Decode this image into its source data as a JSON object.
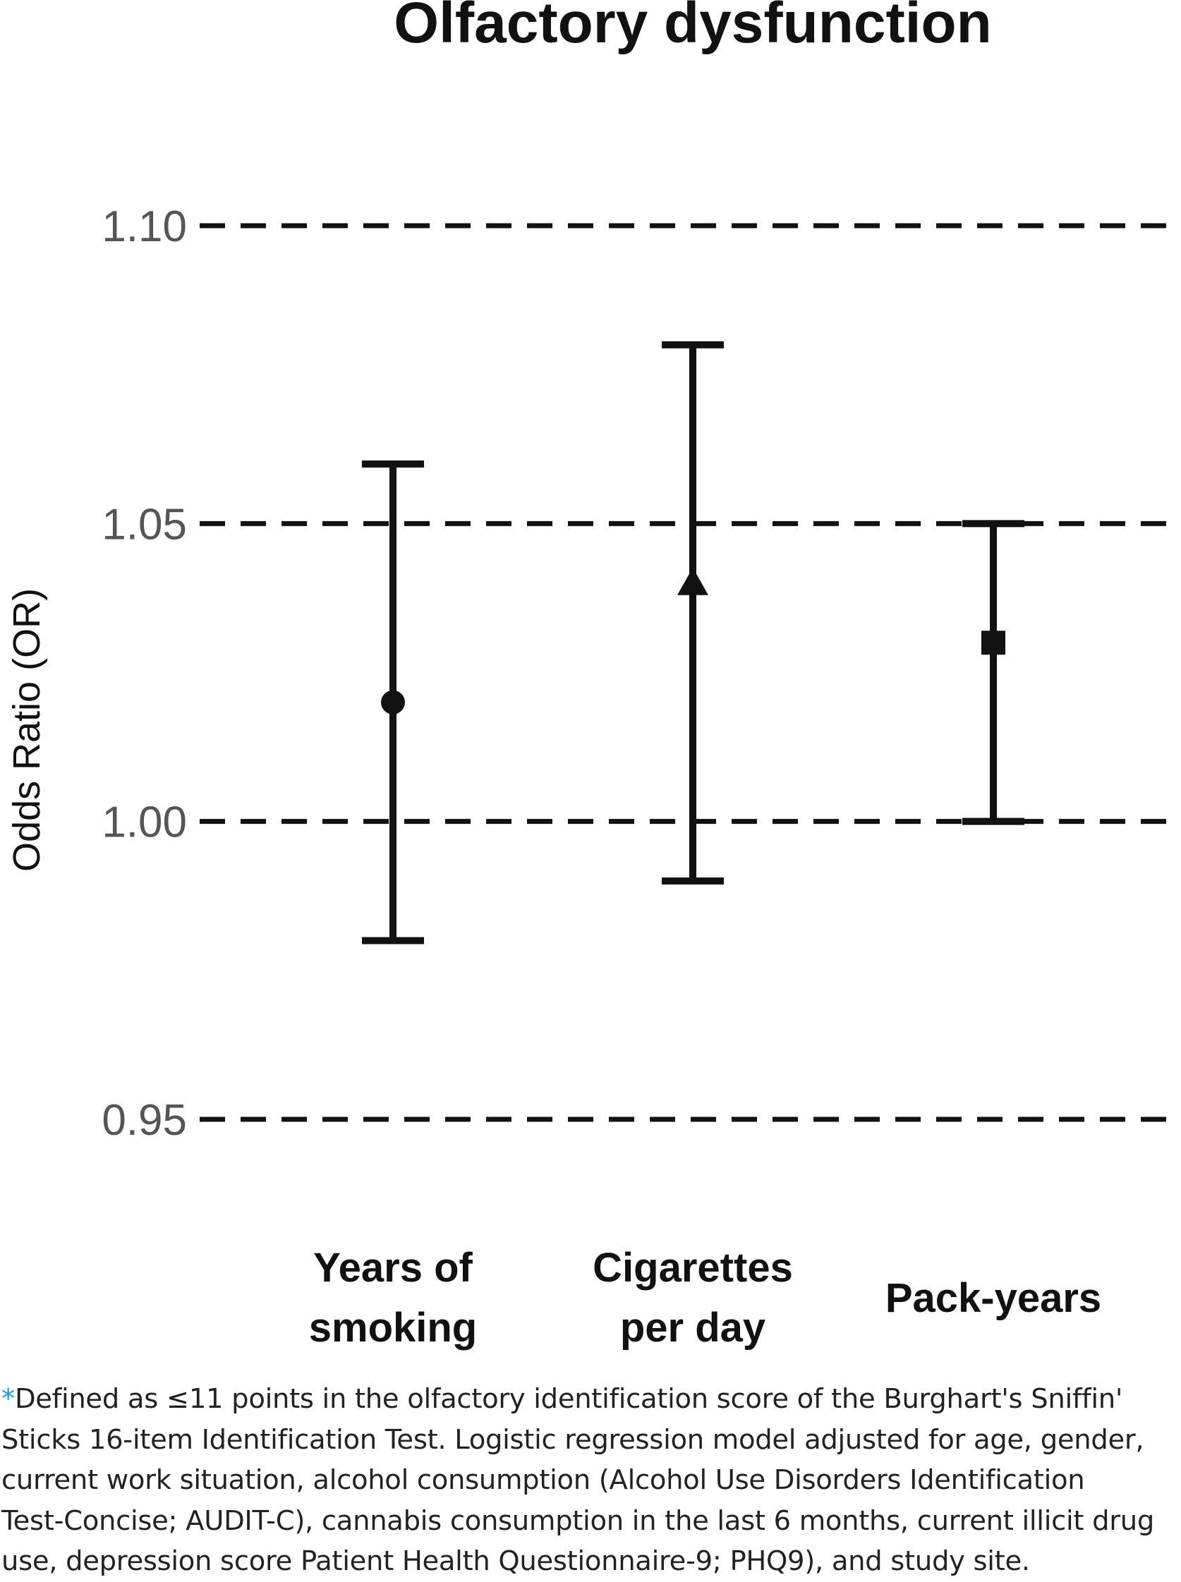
{
  "chart_data": {
    "type": "scatter",
    "title": "Olfactory dysfunction",
    "xlabel": "",
    "ylabel": "Odds Ratio (OR)",
    "ylim": [
      0.94,
      1.12
    ],
    "yticks": [
      0.95,
      1.0,
      1.05,
      1.1
    ],
    "ytick_labels": [
      "0.95",
      "1.00",
      "1.05",
      "1.10"
    ],
    "grid": "horizontal dashed lines at y ticks",
    "categories": [
      {
        "label_lines": [
          "Years of",
          "smoking"
        ],
        "or": 1.02,
        "ci_low": 0.98,
        "ci_high": 1.06,
        "marker": "circle"
      },
      {
        "label_lines": [
          "Cigarettes",
          "per day"
        ],
        "or": 1.04,
        "ci_low": 0.99,
        "ci_high": 1.08,
        "marker": "triangle"
      },
      {
        "label_lines": [
          "Pack-years"
        ],
        "or": 1.03,
        "ci_low": 1.0,
        "ci_high": 1.05,
        "marker": "square"
      }
    ],
    "colors": {
      "marks": "#111111",
      "grid": "#111111",
      "tick_text": "#555555"
    }
  },
  "footnote": {
    "marker": "*",
    "text": "Defined as ≤11 points in the olfactory identification score of the Burghart's Sniffin'\nSticks 16-item Identification Test. Logistic regression model adjusted for age, gender,\ncurrent work situation, alcohol consumption (Alcohol Use Disorders Identification\nTest-Concise; AUDIT-C), cannabis consumption in the last 6 months, current illicit drug\nuse, depression score Patient Health Questionnaire-9; PHQ9), and study site."
  }
}
